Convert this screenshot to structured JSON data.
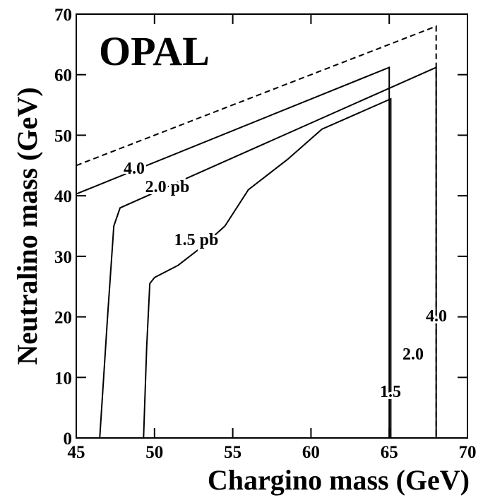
{
  "chart_data": {
    "type": "line",
    "title": "OPAL",
    "x_label": "Chargino mass (GeV)",
    "y_label": "Neutralino mass (GeV)",
    "xlim": [
      45,
      70
    ],
    "ylim": [
      0,
      70
    ],
    "xticks": [
      45,
      50,
      55,
      60,
      65,
      70
    ],
    "yticks": [
      0,
      10,
      20,
      30,
      40,
      50,
      60,
      70
    ],
    "series": [
      {
        "color": "#000000",
        "dashed": true,
        "x": [
          45,
          68,
          68
        ],
        "y": [
          45,
          68,
          0
        ]
      },
      {
        "color": "#000000",
        "dashed": false,
        "x": [
          45,
          65,
          65
        ],
        "y": [
          40.3,
          61.2,
          0
        ]
      },
      {
        "color": "#000000",
        "dashed": false,
        "x": [
          46.5,
          47,
          47.4,
          47.8,
          68,
          68
        ],
        "y": [
          0,
          20,
          35,
          38,
          61.2,
          0
        ]
      },
      {
        "color": "#000000",
        "dashed": false,
        "x": [
          49.3,
          49.5,
          49.7,
          50,
          51.5,
          53,
          54.5,
          56,
          57,
          58.5,
          60.7,
          65.1,
          65.1
        ],
        "y": [
          0,
          15,
          25.5,
          26.5,
          28.5,
          31.5,
          35,
          41,
          43,
          46,
          51,
          56,
          0
        ]
      }
    ],
    "annotations": [
      "4.0",
      "2.0 pb",
      "1.5 pb",
      "4.0",
      "2.0",
      "1.5"
    ]
  }
}
